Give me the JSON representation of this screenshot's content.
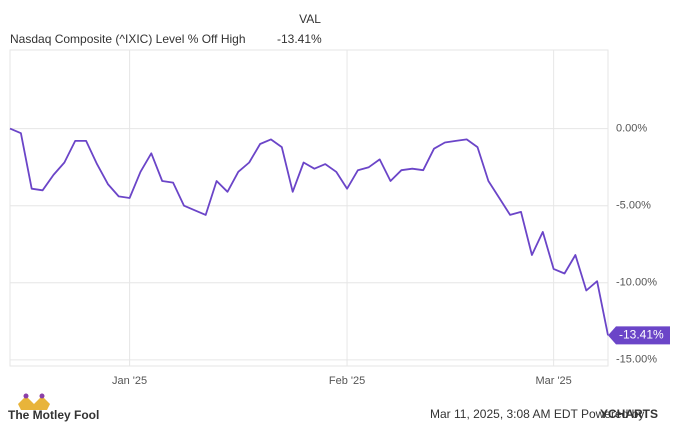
{
  "chart_data": {
    "type": "line",
    "legend_header": "VAL",
    "categories": [
      null,
      null,
      null,
      null,
      null,
      null,
      null,
      null,
      null,
      null,
      null,
      "Jan '25",
      null,
      null,
      null,
      null,
      null,
      null,
      null,
      null,
      null,
      null,
      null,
      null,
      null,
      null,
      null,
      null,
      null,
      null,
      null,
      "Feb '25",
      null,
      null,
      null,
      null,
      null,
      null,
      null,
      null,
      null,
      null,
      null,
      null,
      null,
      null,
      null,
      null,
      null,
      null,
      "Mar '25",
      null,
      null,
      null,
      null,
      null
    ],
    "series": [
      {
        "name": "Nasdaq Composite (^IXIC) Level % Off High",
        "color": "#6b45c8",
        "values": [
          0,
          -0.3,
          -3.9,
          -4.0,
          -3.0,
          -2.2,
          -0.8,
          -0.8,
          -2.3,
          -3.6,
          -4.4,
          -4.5,
          -2.8,
          -1.6,
          -3.4,
          -3.5,
          -5.0,
          -5.3,
          -5.6,
          -3.4,
          -4.1,
          -2.8,
          -2.2,
          -1.0,
          -0.7,
          -1.2,
          -4.1,
          -2.2,
          -2.6,
          -2.3,
          -2.8,
          -3.9,
          -2.7,
          -2.5,
          -2.0,
          -3.4,
          -2.7,
          -2.6,
          -2.7,
          -1.3,
          -0.9,
          -0.8,
          -0.7,
          -1.2,
          -3.4,
          -4.5,
          -5.6,
          -5.4,
          -8.2,
          -6.7,
          -9.1,
          -9.4,
          -8.2,
          -10.5,
          -9.9,
          -13.41
        ],
        "value_labels": [
          null,
          null,
          null,
          null,
          null,
          null,
          null,
          null,
          null,
          null,
          null,
          null,
          null,
          null,
          null,
          null,
          null,
          null,
          null,
          null,
          null,
          null,
          null,
          null,
          null,
          null,
          null,
          null,
          null,
          null,
          null,
          null,
          null,
          null,
          null,
          null,
          null,
          null,
          null,
          null,
          null,
          null,
          null,
          null,
          null,
          null,
          null,
          null,
          null,
          null,
          null,
          null,
          null,
          null,
          null,
          "-13.41%"
        ]
      }
    ],
    "ylim": [
      -15.4,
      5.1
    ],
    "yticks": [
      {
        "value": 0,
        "label": "0.00%"
      },
      {
        "value": -5,
        "label": "-5.00%"
      },
      {
        "value": -10,
        "label": "-10.00%"
      },
      {
        "value": -15,
        "label": "-15.00%"
      }
    ],
    "grid": true
  },
  "footer": {
    "brand": "The Motley Fool",
    "timestamp": "Mar 11, 2025, 3:08 AM EDT Powered by",
    "provider": "YCHARTS"
  }
}
